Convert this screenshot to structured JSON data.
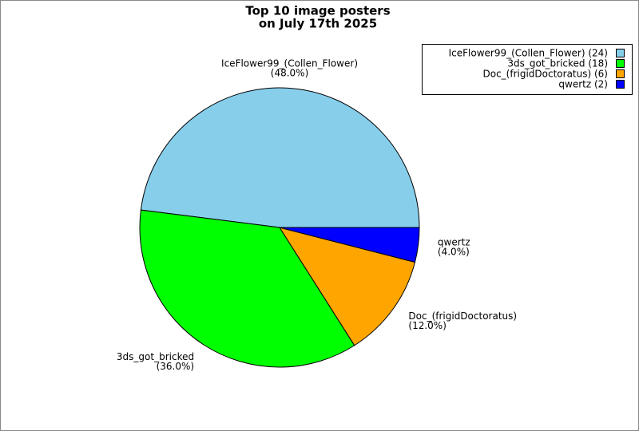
{
  "chart_data": {
    "type": "pie",
    "title": [
      "Top 10 image posters",
      "on July 17th 2025"
    ],
    "categories": [
      "IceFlower99_(Collen_Flower)",
      "3ds_got_bricked",
      "Doc_(frigidDoctoratus)",
      "qwertz"
    ],
    "values": [
      24,
      18,
      6,
      2
    ],
    "percentages": [
      48,
      36,
      12,
      4
    ],
    "percentage_labels": [
      "(48.0%)",
      "(36.0%)",
      "(12.0%)",
      "(4.0%)"
    ],
    "legend_labels": [
      "IceFlower99_(Collen_Flower) (24)",
      "3ds_got_bricked (18)",
      "Doc_(frigidDoctoratus) (6)",
      "qwertz (2)"
    ],
    "colors": [
      "#87ceeb",
      "#00ff00",
      "#ffa500",
      "#0000ff"
    ],
    "legend_position": "top-right"
  }
}
